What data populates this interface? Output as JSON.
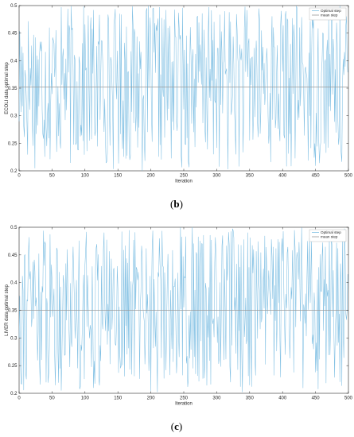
{
  "chart_data": [
    {
      "type": "line",
      "caption": {
        "open": "(",
        "letter": "b",
        "close": ")"
      },
      "xlabel": "Iteration",
      "ylabel": "ECOLI data optimal step",
      "xlim": [
        0,
        500
      ],
      "ylim": [
        0.2,
        0.5
      ],
      "xticks": [
        "0",
        "50",
        "100",
        "150",
        "200",
        "250",
        "300",
        "350",
        "400",
        "450",
        "500"
      ],
      "yticks": [
        "0.2",
        "0.25",
        "0.3",
        "0.35",
        "0.4",
        "0.45",
        "0.5"
      ],
      "legend": {
        "placement": "top-right",
        "entries": [
          "Optimal step",
          "mean step"
        ]
      },
      "series": [
        {
          "name": "Optimal step",
          "color": "#7fbfe3",
          "n_points": 500,
          "min": 0.2,
          "max": 0.5,
          "seed": 17
        },
        {
          "name": "mean step",
          "color": "#999999",
          "values": [
            0.352,
            0.352
          ],
          "x": [
            0,
            500
          ]
        }
      ]
    },
    {
      "type": "line",
      "caption": {
        "open": "(",
        "letter": "c",
        "close": ")"
      },
      "xlabel": "Iteration",
      "ylabel": "LIVER data optimal step",
      "xlim": [
        0,
        500
      ],
      "ylim": [
        0.2,
        0.5
      ],
      "xticks": [
        "0",
        "50",
        "100",
        "150",
        "200",
        "250",
        "300",
        "350",
        "400",
        "450",
        "500"
      ],
      "yticks": [
        "0.2",
        "0.25",
        "0.3",
        "0.35",
        "0.4",
        "0.45",
        "0.5"
      ],
      "legend": {
        "placement": "top-right",
        "entries": [
          "Optimal step",
          "mean step"
        ]
      },
      "series": [
        {
          "name": "Optimal step",
          "color": "#7fbfe3",
          "n_points": 500,
          "min": 0.2,
          "max": 0.5,
          "seed": 91
        },
        {
          "name": "mean step",
          "color": "#999999",
          "values": [
            0.35,
            0.35
          ],
          "x": [
            0,
            500
          ]
        }
      ]
    }
  ],
  "colors": {
    "axis": "#262626",
    "optimal_step": "#7fbfe3",
    "mean_step": "#999999"
  }
}
